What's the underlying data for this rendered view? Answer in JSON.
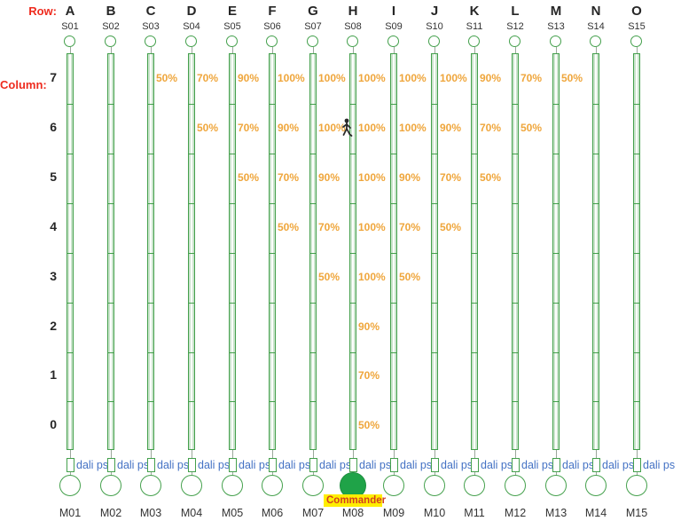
{
  "meta": {
    "row_label": "Row:",
    "column_label": "Column:"
  },
  "colors": {
    "device_green": "#44a04c",
    "commander_fill": "#1fa348",
    "percent_orange": "#efa63c",
    "dali_blue": "#4472c4",
    "axis_red": "#ee2b1e",
    "commander_text": "#d2401f",
    "commander_highlight": "#ffee00"
  },
  "columns": [
    {
      "row_letter": "A",
      "s_label": "S01",
      "m_label": "M01",
      "dali_label": "dali ps"
    },
    {
      "row_letter": "B",
      "s_label": "S02",
      "m_label": "M02",
      "dali_label": "dali ps"
    },
    {
      "row_letter": "C",
      "s_label": "S03",
      "m_label": "M03",
      "dali_label": "dali ps"
    },
    {
      "row_letter": "D",
      "s_label": "S04",
      "m_label": "M04",
      "dali_label": "dali ps"
    },
    {
      "row_letter": "E",
      "s_label": "S05",
      "m_label": "M05",
      "dali_label": "dali ps"
    },
    {
      "row_letter": "F",
      "s_label": "S06",
      "m_label": "M06",
      "dali_label": "dali ps"
    },
    {
      "row_letter": "G",
      "s_label": "S07",
      "m_label": "M07",
      "dali_label": "dali ps"
    },
    {
      "row_letter": "H",
      "s_label": "S08",
      "m_label": "M08",
      "dali_label": "dali ps"
    },
    {
      "row_letter": "I",
      "s_label": "S09",
      "m_label": "M09",
      "dali_label": "dali ps"
    },
    {
      "row_letter": "J",
      "s_label": "S10",
      "m_label": "M10",
      "dali_label": "dali ps"
    },
    {
      "row_letter": "K",
      "s_label": "S11",
      "m_label": "M11",
      "dali_label": "dali ps"
    },
    {
      "row_letter": "L",
      "s_label": "S12",
      "m_label": "M12",
      "dali_label": "dali ps"
    },
    {
      "row_letter": "M",
      "s_label": "S13",
      "m_label": "M13",
      "dali_label": "dali ps"
    },
    {
      "row_letter": "N",
      "s_label": "S14",
      "m_label": "M14",
      "dali_label": "dali ps"
    },
    {
      "row_letter": "O",
      "s_label": "S15",
      "m_label": "M15",
      "dali_label": "dali ps"
    }
  ],
  "commander": {
    "column": "H",
    "label": "Commander"
  },
  "column_numbers": [
    "7",
    "6",
    "5",
    "4",
    "3",
    "2",
    "1",
    "0"
  ],
  "levels": [
    {
      "column": "C",
      "row": 7,
      "value": "50%"
    },
    {
      "column": "D",
      "row": 7,
      "value": "70%"
    },
    {
      "column": "E",
      "row": 7,
      "value": "90%"
    },
    {
      "column": "F",
      "row": 7,
      "value": "100%"
    },
    {
      "column": "G",
      "row": 7,
      "value": "100%"
    },
    {
      "column": "H",
      "row": 7,
      "value": "100%"
    },
    {
      "column": "I",
      "row": 7,
      "value": "100%"
    },
    {
      "column": "J",
      "row": 7,
      "value": "100%"
    },
    {
      "column": "K",
      "row": 7,
      "value": "90%"
    },
    {
      "column": "L",
      "row": 7,
      "value": "70%"
    },
    {
      "column": "M",
      "row": 7,
      "value": "50%"
    },
    {
      "column": "D",
      "row": 6,
      "value": "50%"
    },
    {
      "column": "E",
      "row": 6,
      "value": "70%"
    },
    {
      "column": "F",
      "row": 6,
      "value": "90%"
    },
    {
      "column": "G",
      "row": 6,
      "value": "100%"
    },
    {
      "column": "H",
      "row": 6,
      "value": "100%"
    },
    {
      "column": "I",
      "row": 6,
      "value": "100%"
    },
    {
      "column": "J",
      "row": 6,
      "value": "90%"
    },
    {
      "column": "K",
      "row": 6,
      "value": "70%"
    },
    {
      "column": "L",
      "row": 6,
      "value": "50%"
    },
    {
      "column": "E",
      "row": 5,
      "value": "50%"
    },
    {
      "column": "F",
      "row": 5,
      "value": "70%"
    },
    {
      "column": "G",
      "row": 5,
      "value": "90%"
    },
    {
      "column": "H",
      "row": 5,
      "value": "100%"
    },
    {
      "column": "I",
      "row": 5,
      "value": "90%"
    },
    {
      "column": "J",
      "row": 5,
      "value": "70%"
    },
    {
      "column": "K",
      "row": 5,
      "value": "50%"
    },
    {
      "column": "F",
      "row": 4,
      "value": "50%"
    },
    {
      "column": "G",
      "row": 4,
      "value": "70%"
    },
    {
      "column": "H",
      "row": 4,
      "value": "100%"
    },
    {
      "column": "I",
      "row": 4,
      "value": "70%"
    },
    {
      "column": "J",
      "row": 4,
      "value": "50%"
    },
    {
      "column": "G",
      "row": 3,
      "value": "50%"
    },
    {
      "column": "H",
      "row": 3,
      "value": "100%"
    },
    {
      "column": "I",
      "row": 3,
      "value": "50%"
    },
    {
      "column": "H",
      "row": 2,
      "value": "90%"
    },
    {
      "column": "H",
      "row": 1,
      "value": "70%"
    },
    {
      "column": "H",
      "row": 0,
      "value": "50%"
    }
  ],
  "person_icon": {
    "column": "H",
    "row": 6
  }
}
